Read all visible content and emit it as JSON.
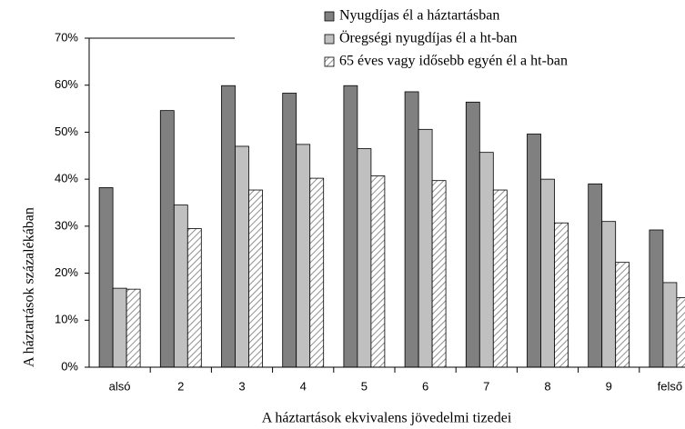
{
  "chart_data": {
    "type": "bar",
    "x_label": "A háztartások ekvivalens jövedelmi tizedei",
    "y_label": "A háztartások százalékában",
    "categories": [
      "alsó",
      "2",
      "3",
      "4",
      "5",
      "6",
      "7",
      "8",
      "9",
      "felső"
    ],
    "series": [
      {
        "name": "Nyugdíjas él a háztartásban",
        "color": "#808080",
        "values": [
          38.2,
          54.6,
          59.9,
          58.3,
          59.9,
          58.6,
          56.4,
          49.6,
          39.0,
          29.2
        ]
      },
      {
        "name": "Öregségi nyugdíjas él a ht-ban",
        "color": "#c0c0c0",
        "values": [
          16.8,
          34.5,
          47.0,
          47.4,
          46.5,
          50.6,
          45.7,
          40.0,
          31.0,
          18.0
        ]
      },
      {
        "name": "65 éves vagy idősebb egyén él a ht-ban",
        "color": "hatch",
        "values": [
          16.6,
          29.5,
          37.7,
          40.2,
          40.7,
          39.7,
          37.7,
          30.7,
          22.3,
          14.8
        ]
      }
    ],
    "ylim": [
      0,
      70
    ],
    "yticks": [
      {
        "value": 0,
        "label": "0%"
      },
      {
        "value": 10,
        "label": "10%"
      },
      {
        "value": 20,
        "label": "20%"
      },
      {
        "value": 30,
        "label": "30%"
      },
      {
        "value": 40,
        "label": "40%"
      },
      {
        "value": 50,
        "label": "50%"
      },
      {
        "value": 60,
        "label": "60%"
      },
      {
        "value": 70,
        "label": "70%"
      }
    ],
    "grid": false,
    "legend": "top-right"
  }
}
